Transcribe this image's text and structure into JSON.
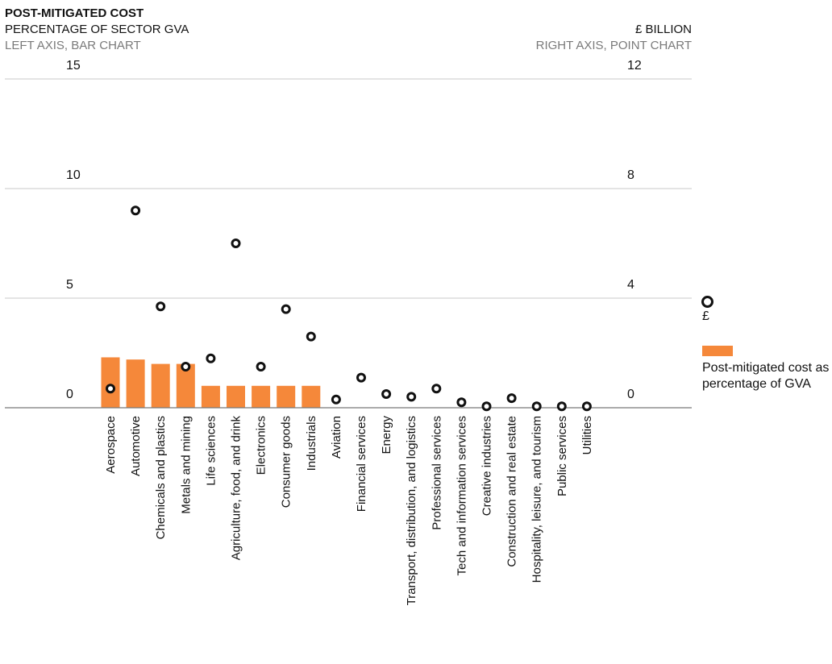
{
  "header": {
    "title": "POST-MITIGATED COST",
    "left_subtitle": "PERCENTAGE OF SECTOR GVA",
    "left_note": "LEFT AXIS, BAR CHART",
    "right_subtitle": "£ BILLION",
    "right_note": "RIGHT AXIS, POINT CHART"
  },
  "legend": {
    "point_label": "£",
    "bar_label": "Post-mitigated cost as percentage of GVA"
  },
  "colors": {
    "bar": "#f5883a",
    "grid": "#c8c8c8",
    "axis": "#777777",
    "point": "#111111"
  },
  "chart_data": {
    "type": "bar",
    "title": "POST-MITIGATED COST",
    "categories": [
      "Aerospace",
      "Automotive",
      "Chemicals and plastics",
      "Metals and mining",
      "Life sciences",
      "Agriculture,  food, and drink",
      "Electronics",
      "Consumer goods",
      "Industrials",
      "Aviation",
      "Financial services",
      "Energy",
      "Transport, distribution, and logistics",
      "Professional services",
      "Tech and information services",
      "Creative industries",
      "Construction and real estate",
      "Hospitality, leisure, and tourism",
      "Public services",
      "Utilities"
    ],
    "left_axis": {
      "label": "PERCENTAGE OF SECTOR GVA",
      "ylim": [
        0,
        15
      ],
      "ticks": [
        "0",
        "5",
        "10",
        "15"
      ]
    },
    "right_axis": {
      "label": "£ BILLION",
      "ylim": [
        0,
        12
      ],
      "ticks": [
        "0",
        "4",
        "8",
        "12"
      ]
    },
    "series": [
      {
        "type": "bar",
        "axis": "left",
        "name": "Post-mitigated cost as percentage of GVA",
        "values": [
          2.3,
          2.2,
          2.0,
          2.0,
          1.0,
          1.0,
          1.0,
          1.0,
          1.0,
          null,
          null,
          null,
          null,
          null,
          null,
          null,
          null,
          null,
          null,
          null
        ]
      },
      {
        "type": "point",
        "axis": "right",
        "name": "£",
        "values": [
          0.7,
          7.2,
          3.7,
          1.5,
          1.8,
          6.0,
          1.5,
          3.6,
          2.6,
          0.3,
          1.1,
          0.5,
          0.4,
          0.7,
          0.2,
          0.05,
          0.35,
          0.05,
          0.05,
          0.05
        ]
      }
    ],
    "grid": true
  }
}
